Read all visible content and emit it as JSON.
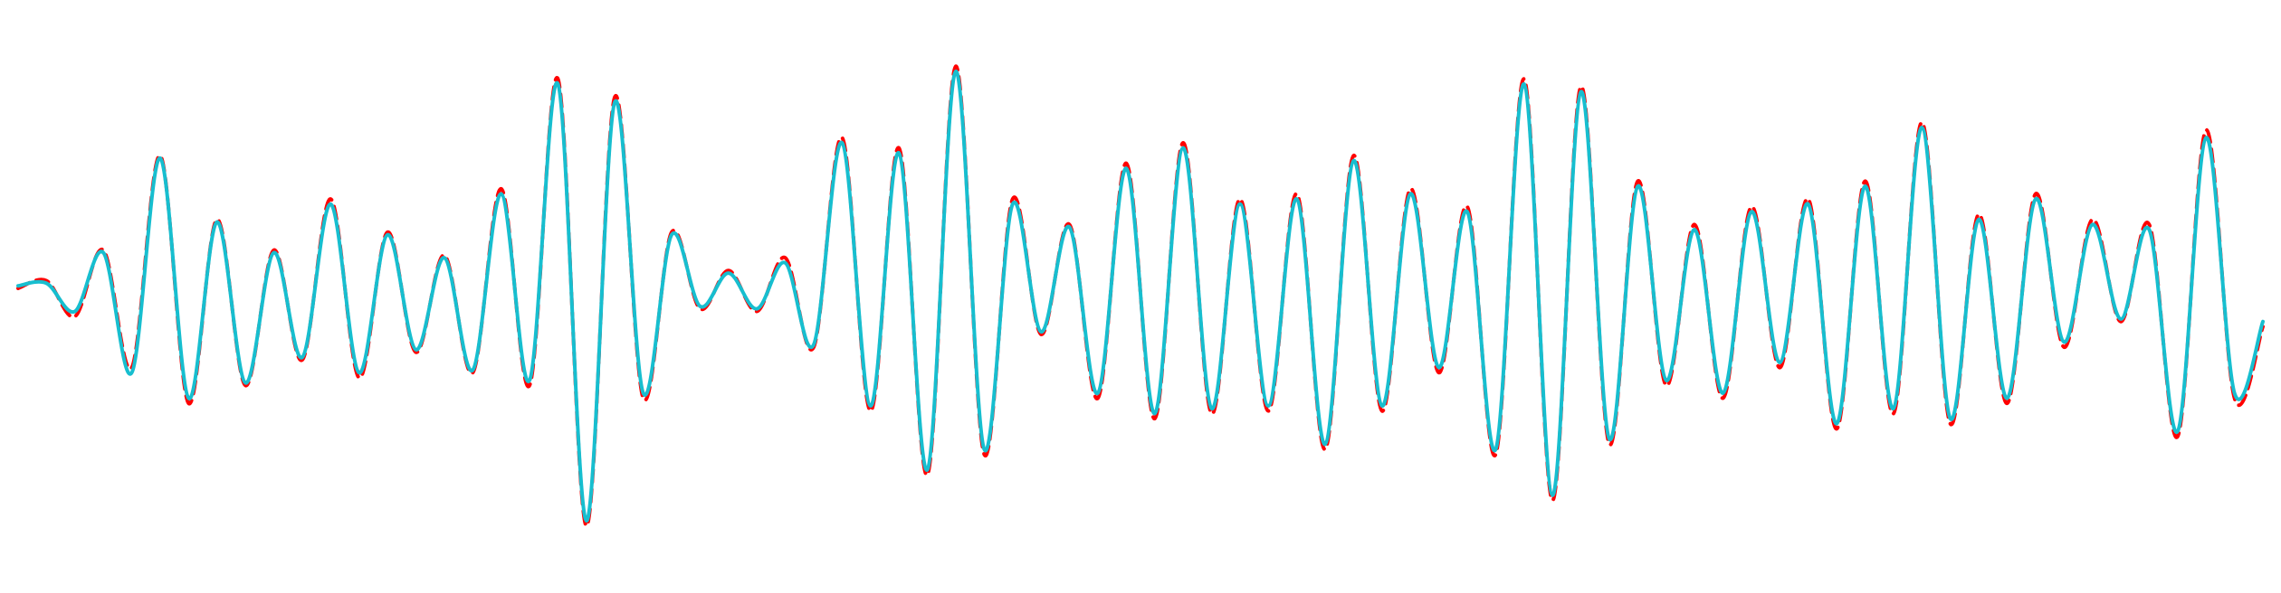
{
  "chart_data": {
    "type": "line",
    "title": "",
    "xlabel": "",
    "ylabel": "",
    "axes_visible": false,
    "grid": false,
    "legend": "none",
    "ylim": [
      -1.0,
      1.0
    ],
    "x": [
      0,
      1,
      2,
      3,
      4,
      5,
      6,
      7,
      8,
      9,
      10,
      11,
      12,
      13,
      14,
      15,
      16,
      17,
      18,
      19,
      20,
      21,
      22,
      23,
      24,
      25,
      26,
      27,
      28,
      29,
      30,
      31,
      32,
      33,
      34,
      35,
      36,
      37,
      38,
      39,
      40,
      41,
      42,
      43,
      44,
      45,
      46,
      47,
      48,
      49,
      50,
      51,
      52,
      53,
      54,
      55,
      56,
      57,
      58,
      59,
      60,
      61,
      62,
      63,
      64,
      65,
      66,
      67,
      68,
      69,
      70,
      71,
      72,
      73,
      74,
      75,
      76,
      77,
      78,
      79
    ],
    "series": [
      {
        "role": "target",
        "color": "#ff0000",
        "style": "dashed",
        "values": [
          0.03,
          0.06,
          -0.08,
          0.18,
          -0.28,
          0.55,
          -0.42,
          0.3,
          -0.35,
          0.18,
          -0.25,
          0.38,
          -0.32,
          0.25,
          -0.22,
          0.16,
          -0.3,
          0.42,
          -0.35,
          0.85,
          -0.9,
          0.78,
          -0.4,
          0.25,
          -0.05,
          0.1,
          -0.06,
          0.15,
          -0.2,
          0.62,
          -0.45,
          0.58,
          -0.7,
          0.9,
          -0.62,
          0.38,
          -0.15,
          0.28,
          -0.4,
          0.52,
          -0.48,
          0.6,
          -0.46,
          0.38,
          -0.45,
          0.4,
          -0.6,
          0.55,
          -0.45,
          0.42,
          -0.3,
          0.35,
          -0.62,
          0.85,
          -0.8,
          0.82,
          -0.58,
          0.45,
          -0.35,
          0.28,
          -0.4,
          0.35,
          -0.28,
          0.38,
          -0.52,
          0.45,
          -0.46,
          0.68,
          -0.5,
          0.32,
          -0.42,
          0.4,
          -0.2,
          0.3,
          -0.1,
          0.28,
          -0.55,
          0.65,
          -0.4,
          -0.12
        ]
      },
      {
        "role": "prediction",
        "color": "#17becf",
        "style": "solid",
        "values": [
          0.04,
          0.05,
          -0.06,
          0.17,
          -0.3,
          0.54,
          -0.4,
          0.29,
          -0.34,
          0.17,
          -0.24,
          0.36,
          -0.3,
          0.24,
          -0.21,
          0.15,
          -0.29,
          0.4,
          -0.33,
          0.83,
          -0.88,
          0.76,
          -0.38,
          0.24,
          -0.04,
          0.09,
          -0.05,
          0.13,
          -0.19,
          0.6,
          -0.43,
          0.56,
          -0.68,
          0.88,
          -0.6,
          0.36,
          -0.14,
          0.27,
          -0.38,
          0.5,
          -0.46,
          0.58,
          -0.44,
          0.36,
          -0.43,
          0.38,
          -0.58,
          0.53,
          -0.43,
          0.4,
          -0.28,
          0.33,
          -0.6,
          0.83,
          -0.78,
          0.8,
          -0.56,
          0.43,
          -0.33,
          0.26,
          -0.38,
          0.33,
          -0.26,
          0.36,
          -0.5,
          0.43,
          -0.44,
          0.66,
          -0.48,
          0.3,
          -0.4,
          0.38,
          -0.18,
          0.28,
          -0.09,
          0.26,
          -0.53,
          0.62,
          -0.38,
          -0.1
        ]
      }
    ]
  }
}
